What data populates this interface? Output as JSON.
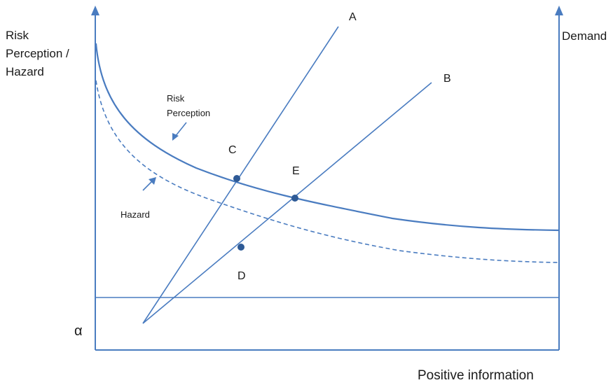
{
  "labels": {
    "y_left_line1": "Risk",
    "y_left_line2": "Perception /",
    "y_left_line3": "Hazard",
    "y_right": "Demand",
    "x_axis": "Positive information",
    "alpha": "α",
    "risk_line1": "Risk",
    "risk_line2": "Perception",
    "hazard": "Hazard",
    "point_a": "A",
    "point_b": "B",
    "point_c": "C",
    "point_d": "D",
    "point_e": "E"
  },
  "colors": {
    "line": "#4a7cc0",
    "point": "#2e5a96",
    "text": "#1a1a1a"
  }
}
